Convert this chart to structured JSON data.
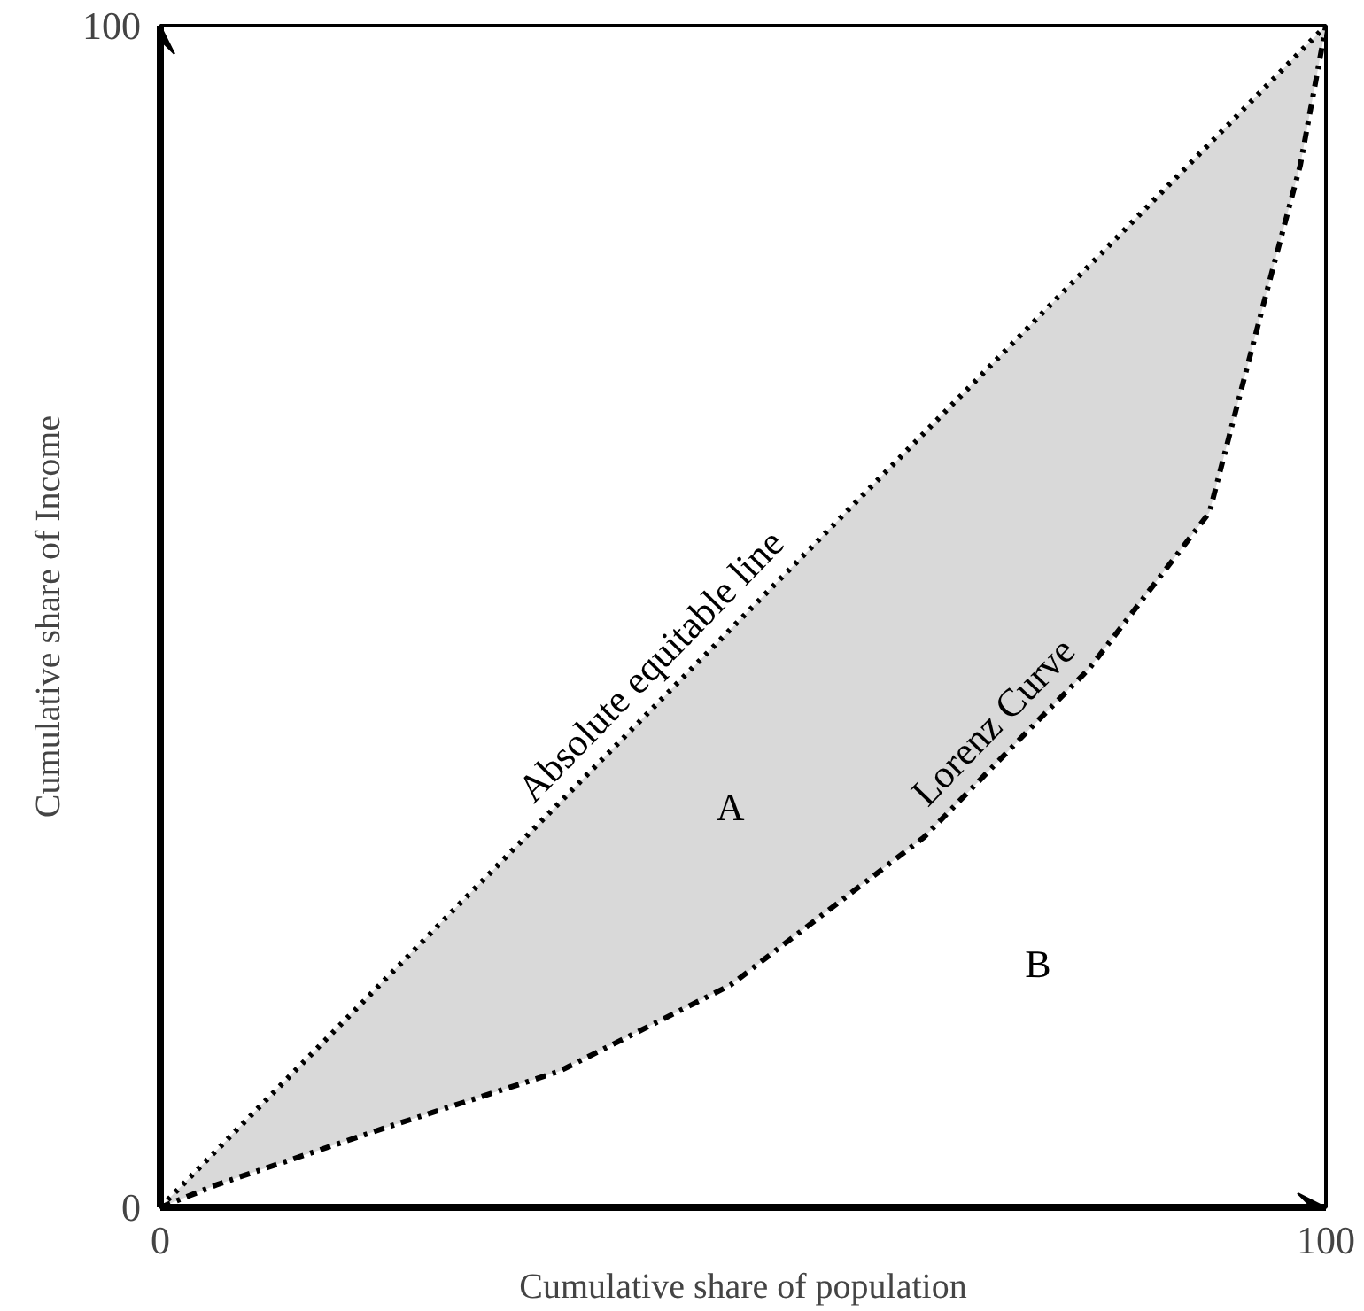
{
  "chart_data": {
    "type": "line",
    "xlabel": "Cumulative share of population",
    "ylabel": "Cumulative share of Income",
    "xlim": [
      0,
      100
    ],
    "ylim": [
      0,
      100
    ],
    "xticks": [
      0,
      100
    ],
    "yticks": [
      0,
      100
    ],
    "legend": false,
    "series": [
      {
        "name": "Absolute equitable line",
        "color": "#000000",
        "line_style": "dotted",
        "x": [
          0,
          100
        ],
        "values": [
          0,
          100
        ]
      },
      {
        "name": "Lorenz Curve",
        "color": "#000000",
        "line_style": "dashdot",
        "x": [
          0,
          4.8,
          19.5,
          34.2,
          48.9,
          65.5,
          75.3,
          79.7,
          90,
          94.9,
          97.8,
          100
        ],
        "values": [
          0,
          1.9,
          6.8,
          11.5,
          18.8,
          31.3,
          41.2,
          45.6,
          58.8,
          77.4,
          88.2,
          100
        ],
        "lower": [
          0,
          1.9,
          6.8,
          11.5,
          18.8,
          31.3,
          41.2,
          45.6,
          58.8,
          77.4,
          88.2,
          100
        ],
        "upper": [
          0,
          4.8,
          19.5,
          34.2,
          48.9,
          65.5,
          75.3,
          79.7,
          90,
          94.9,
          97.8,
          100
        ]
      }
    ],
    "annotations": [
      "A",
      "B"
    ]
  }
}
